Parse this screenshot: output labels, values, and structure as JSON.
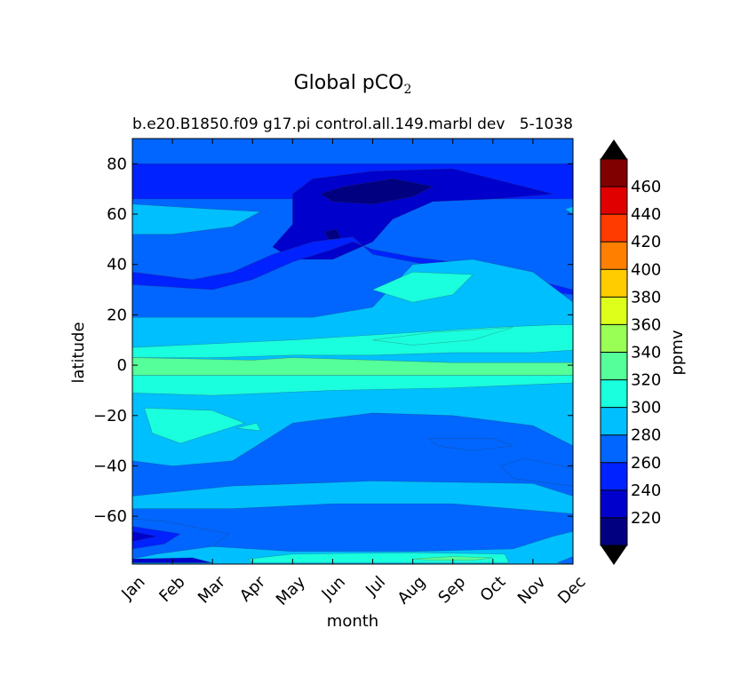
{
  "chart_data": {
    "type": "heatmap",
    "title_main": "Global pCO",
    "title_sub": "2",
    "subtitle_left": "b.e20.B1850.f09 g17.pi control.all.149.marbl dev",
    "subtitle_right": "5-1038",
    "xlabel": "month",
    "ylabel": "latitude",
    "x_categories": [
      "Jan",
      "Feb",
      "Mar",
      "Apr",
      "May",
      "Jun",
      "Jul",
      "Aug",
      "Sep",
      "Oct",
      "Nov",
      "Dec"
    ],
    "xlim": [
      1,
      12
    ],
    "ylim": [
      -79,
      90
    ],
    "yticks": [
      80,
      60,
      40,
      20,
      0,
      -20,
      -40,
      -60
    ],
    "colorbar": {
      "label": "ppmv",
      "levels": [
        200,
        220,
        240,
        260,
        280,
        300,
        320,
        340,
        360,
        380,
        400,
        420,
        440,
        460,
        480
      ],
      "tick_labels": [
        "220",
        "240",
        "260",
        "280",
        "300",
        "320",
        "340",
        "360",
        "380",
        "400",
        "420",
        "440",
        "460"
      ],
      "colors": [
        "#000080",
        "#0000cd",
        "#0022ff",
        "#0066ff",
        "#00bfff",
        "#1affdd",
        "#55ff99",
        "#99ff55",
        "#ddff1a",
        "#ffcc00",
        "#ff8000",
        "#ff3b00",
        "#e00000",
        "#800000"
      ],
      "under_color": "#000000",
      "over_color": "#000000"
    },
    "base_level_color": "#0066ff",
    "contour_regions": [
      {
        "value": 240,
        "points": [
          [
            1,
            80
          ],
          [
            12,
            80
          ],
          [
            12,
            66
          ],
          [
            1,
            66
          ]
        ]
      },
      {
        "value": 220,
        "points": [
          [
            5.5,
            74
          ],
          [
            7,
            77
          ],
          [
            9,
            78
          ],
          [
            10.5,
            72
          ],
          [
            11.5,
            68
          ],
          [
            10,
            66
          ],
          [
            8.5,
            65
          ],
          [
            7.5,
            58
          ],
          [
            7,
            49
          ],
          [
            6,
            42
          ],
          [
            5,
            42
          ],
          [
            4.5,
            47
          ],
          [
            5,
            56
          ],
          [
            5,
            68
          ]
        ]
      },
      {
        "value": 200,
        "points": [
          [
            5.7,
            68
          ],
          [
            6.3,
            71
          ],
          [
            7.5,
            74
          ],
          [
            8.5,
            71
          ],
          [
            8,
            67
          ],
          [
            7,
            64
          ],
          [
            6,
            65
          ]
        ]
      },
      {
        "value": 200,
        "points": [
          [
            5.8,
            53
          ],
          [
            6.1,
            54
          ],
          [
            6.2,
            50
          ],
          [
            5.9,
            50
          ]
        ]
      },
      {
        "value": 240,
        "points": [
          [
            1,
            37
          ],
          [
            2.5,
            34
          ],
          [
            3.5,
            37
          ],
          [
            4.5,
            44
          ],
          [
            5.5,
            49
          ],
          [
            6.5,
            51
          ],
          [
            7,
            44
          ],
          [
            8,
            41
          ],
          [
            9,
            38
          ],
          [
            10,
            34
          ],
          [
            11,
            30
          ],
          [
            12,
            28
          ],
          [
            12,
            30
          ],
          [
            11,
            34
          ],
          [
            9.5,
            40
          ],
          [
            8,
            43
          ],
          [
            7,
            46
          ],
          [
            6.5,
            49
          ],
          [
            6,
            46
          ],
          [
            5,
            41
          ],
          [
            4,
            34
          ],
          [
            3,
            30
          ],
          [
            1,
            32
          ]
        ]
      },
      {
        "value": 280,
        "points": [
          [
            1,
            64
          ],
          [
            3,
            62
          ],
          [
            4.2,
            61
          ],
          [
            3.5,
            55
          ],
          [
            2,
            52
          ],
          [
            1,
            52
          ]
        ]
      },
      {
        "value": 280,
        "points": [
          [
            12,
            63
          ],
          [
            11.8,
            62
          ],
          [
            12,
            60
          ]
        ]
      },
      {
        "value": 280,
        "points": [
          [
            1,
            19
          ],
          [
            5.5,
            19
          ],
          [
            7,
            23
          ],
          [
            8,
            40
          ],
          [
            9.5,
            42
          ],
          [
            11,
            37
          ],
          [
            12,
            25
          ],
          [
            12,
            -32
          ],
          [
            11,
            -24
          ],
          [
            9,
            -20
          ],
          [
            7,
            -19
          ],
          [
            5,
            -23
          ],
          [
            3.5,
            -38
          ],
          [
            2,
            -40
          ],
          [
            1,
            -38
          ]
        ]
      },
      {
        "value": 300,
        "points": [
          [
            1,
            7
          ],
          [
            5,
            10
          ],
          [
            7,
            12
          ],
          [
            8,
            13
          ],
          [
            10,
            15
          ],
          [
            11.5,
            16
          ],
          [
            12,
            16
          ],
          [
            12,
            6
          ],
          [
            11,
            5
          ],
          [
            9,
            5
          ],
          [
            7,
            4
          ],
          [
            5,
            4
          ],
          [
            3,
            3
          ],
          [
            1,
            3
          ]
        ]
      },
      {
        "value": 300,
        "points": [
          [
            1,
            -4
          ],
          [
            12,
            -4
          ],
          [
            12,
            -7
          ],
          [
            9,
            -9
          ],
          [
            6,
            -10
          ],
          [
            3,
            -12
          ],
          [
            1,
            -11
          ]
        ]
      },
      {
        "value": 300,
        "points": [
          [
            7,
            30
          ],
          [
            8,
            37
          ],
          [
            9.5,
            36
          ],
          [
            9,
            28
          ],
          [
            8,
            25
          ]
        ]
      },
      {
        "value": 300,
        "points": [
          [
            7,
            10
          ],
          [
            8.5,
            13
          ],
          [
            10.5,
            15
          ],
          [
            9.5,
            10
          ],
          [
            8,
            8
          ]
        ]
      },
      {
        "value": 300,
        "points": [
          [
            1.3,
            -17
          ],
          [
            3,
            -18
          ],
          [
            3.8,
            -23
          ],
          [
            3,
            -27
          ],
          [
            2.2,
            -31
          ],
          [
            1.5,
            -27
          ]
        ]
      },
      {
        "value": 300,
        "points": [
          [
            3.6,
            -25
          ],
          [
            4.1,
            -23
          ],
          [
            4.2,
            -26
          ]
        ]
      },
      {
        "value": 320,
        "points": [
          [
            1,
            3
          ],
          [
            2.5,
            2.5
          ],
          [
            4,
            2
          ],
          [
            5,
            3
          ],
          [
            7,
            2
          ],
          [
            9,
            1
          ],
          [
            12,
            1
          ],
          [
            12,
            -4
          ],
          [
            1,
            -4
          ]
        ]
      },
      {
        "value": 260,
        "points": [
          [
            8.4,
            -29
          ],
          [
            10,
            -29
          ],
          [
            10.5,
            -32
          ],
          [
            9.5,
            -34
          ],
          [
            8.6,
            -32
          ]
        ]
      },
      {
        "value": 260,
        "points": [
          [
            10.8,
            -37
          ],
          [
            12,
            -41
          ],
          [
            12,
            -48
          ],
          [
            10.5,
            -45
          ],
          [
            10.2,
            -40
          ]
        ]
      },
      {
        "value": 280,
        "points": [
          [
            1,
            -52
          ],
          [
            3.5,
            -48
          ],
          [
            7,
            -46
          ],
          [
            11,
            -47
          ],
          [
            12,
            -52
          ],
          [
            12,
            -59
          ],
          [
            9,
            -55
          ],
          [
            6,
            -55
          ],
          [
            3.5,
            -57
          ],
          [
            1,
            -57
          ]
        ]
      },
      {
        "value": 280,
        "points": [
          [
            1,
            -73
          ],
          [
            3,
            -72
          ],
          [
            5,
            -74
          ],
          [
            8,
            -74
          ],
          [
            10.5,
            -73
          ],
          [
            11.5,
            -68
          ],
          [
            12,
            -66
          ],
          [
            12,
            -79
          ],
          [
            1,
            -79
          ]
        ]
      },
      {
        "value": 300,
        "points": [
          [
            3.9,
            -77
          ],
          [
            5,
            -75
          ],
          [
            8,
            -74.5
          ],
          [
            10.3,
            -75
          ],
          [
            10.4,
            -78.5
          ],
          [
            4,
            -78.5
          ]
        ]
      },
      {
        "value": 320,
        "points": [
          [
            8,
            -77
          ],
          [
            9,
            -76
          ],
          [
            10,
            -76.5
          ],
          [
            9.5,
            -77.5
          ],
          [
            8.5,
            -77.5
          ]
        ]
      },
      {
        "value": 260,
        "points": [
          [
            1,
            -61
          ],
          [
            1.8,
            -62
          ],
          [
            3.4,
            -67
          ],
          [
            3,
            -72
          ],
          [
            1.6,
            -75
          ],
          [
            1,
            -77
          ]
        ]
      },
      {
        "value": 240,
        "points": [
          [
            1,
            -64
          ],
          [
            2.2,
            -67
          ],
          [
            1.8,
            -71
          ],
          [
            1,
            -73
          ]
        ]
      },
      {
        "value": 220,
        "points": [
          [
            1,
            -66
          ],
          [
            1.6,
            -68
          ],
          [
            1,
            -70
          ]
        ]
      },
      {
        "value": 220,
        "points": [
          [
            1,
            -77
          ],
          [
            2.5,
            -76.5
          ],
          [
            3,
            -78.5
          ],
          [
            1,
            -78.5
          ]
        ]
      },
      {
        "value": 260,
        "points": [
          [
            11.6,
            -78.5
          ],
          [
            12,
            -76
          ],
          [
            12,
            -79
          ]
        ]
      }
    ]
  }
}
